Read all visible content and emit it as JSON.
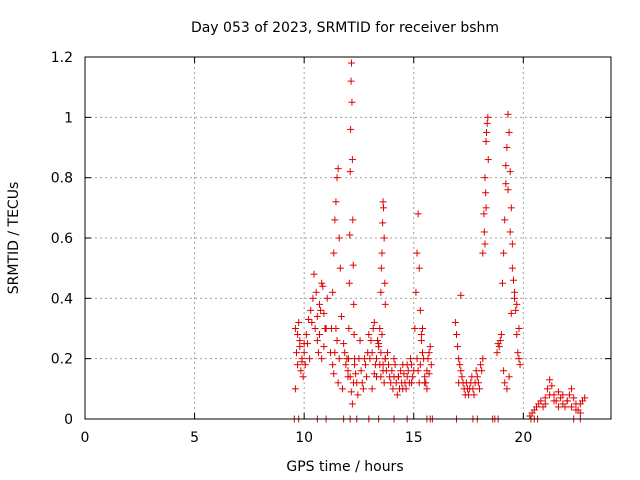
{
  "chart_data": {
    "type": "scatter",
    "title": "Day 053 of 2023, SRMTID for receiver bshm",
    "xlabel": "GPS time / hours",
    "ylabel": "SRMTID / TECUs",
    "xlim": [
      0,
      24
    ],
    "ylim": [
      0,
      1.2
    ],
    "xticks": [
      0,
      5,
      10,
      15,
      20
    ],
    "xtick_labels": [
      "0",
      "5",
      "10",
      "15",
      "20"
    ],
    "yticks": [
      0,
      0.2,
      0.4,
      0.6,
      0.8,
      1.0,
      1.2
    ],
    "ytick_labels": [
      "0",
      "0.2",
      "0.4",
      "0.6",
      "0.8",
      "1",
      "1.2"
    ],
    "grid": true,
    "marker": "plus",
    "color": "#e00000",
    "series": [
      {
        "name": "SRMTID",
        "x": [
          9.6,
          9.65,
          9.7,
          9.75,
          9.8,
          9.85,
          9.9,
          9.95,
          10.0,
          10.05,
          9.6,
          9.7,
          9.8,
          9.9,
          10.0,
          10.1,
          10.2,
          10.3,
          10.4,
          10.5,
          10.6,
          10.7,
          10.8,
          10.9,
          11.0,
          10.15,
          10.25,
          10.35,
          10.45,
          10.55,
          10.65,
          10.75,
          10.85,
          10.95,
          11.05,
          10.6,
          10.7,
          10.8,
          10.9,
          11.0,
          11.2,
          11.25,
          11.3,
          11.35,
          11.4,
          11.45,
          11.5,
          11.55,
          11.6,
          11.65,
          11.3,
          11.35,
          11.4,
          11.45,
          11.5,
          11.55,
          11.6,
          11.7,
          11.8,
          11.9,
          12.0,
          11.75,
          11.85,
          11.95,
          12.0,
          12.02,
          12.04,
          12.06,
          12.08,
          12.1,
          12.12,
          12.14,
          12.16,
          12.18,
          12.2,
          12.22,
          12.24,
          12.26,
          12.28,
          12.3,
          12.1,
          12.15,
          12.2,
          12.25,
          12.3,
          12.35,
          12.4,
          12.45,
          12.5,
          12.55,
          12.6,
          12.65,
          12.7,
          12.75,
          12.8,
          12.85,
          12.9,
          12.95,
          13.0,
          13.05,
          13.1,
          13.15,
          13.2,
          13.25,
          13.3,
          13.35,
          13.4,
          13.45,
          13.5,
          13.55,
          13.6,
          13.65,
          13.7,
          13.1,
          13.2,
          13.3,
          13.4,
          13.5,
          13.6,
          13.7,
          13.75,
          13.45,
          13.5,
          13.55,
          13.6,
          13.65,
          13.7,
          13.52,
          13.58,
          13.62,
          13.68,
          13.8,
          13.85,
          13.9,
          13.95,
          14.0,
          14.05,
          14.1,
          14.15,
          14.2,
          14.25,
          14.3,
          14.35,
          14.4,
          14.45,
          14.5,
          14.55,
          14.6,
          14.65,
          14.7,
          14.75,
          14.8,
          14.85,
          14.9,
          14.95,
          15.0,
          14.1,
          14.3,
          14.5,
          14.7,
          14.9,
          15.05,
          15.1,
          15.15,
          15.2,
          15.25,
          15.3,
          15.35,
          15.4,
          15.15,
          15.2,
          15.25,
          15.3,
          15.35,
          15.4,
          15.45,
          15.5,
          15.55,
          15.6,
          15.65,
          15.7,
          15.75,
          15.8,
          15.5,
          15.6,
          15.7,
          16.9,
          16.95,
          17.0,
          17.05,
          17.1,
          17.15,
          17.2,
          17.25,
          17.3,
          17.35,
          17.4,
          17.45,
          17.5,
          17.55,
          17.6,
          17.65,
          17.7,
          17.75,
          17.8,
          17.85,
          17.9,
          17.95,
          18.0,
          18.05,
          18.1,
          18.15,
          17.15,
          17.05,
          18.15,
          18.2,
          18.25,
          18.3,
          18.35,
          18.4,
          18.22,
          18.28,
          18.32,
          18.38,
          18.25,
          18.3,
          18.8,
          18.85,
          18.9,
          18.95,
          19.0,
          19.05,
          19.1,
          19.15,
          19.2,
          19.25,
          19.3,
          19.35,
          19.4,
          19.45,
          19.5,
          19.55,
          19.6,
          19.65,
          19.7,
          19.75,
          19.8,
          19.85,
          19.2,
          19.3,
          19.4,
          19.5,
          19.6,
          19.7,
          19.8,
          19.1,
          19.15,
          19.25,
          19.35,
          19.45,
          20.3,
          20.4,
          20.5,
          20.6,
          20.7,
          20.8,
          20.9,
          21.0,
          21.1,
          21.2,
          21.3,
          21.4,
          21.5,
          21.6,
          21.7,
          21.8,
          21.9,
          22.0,
          22.1,
          22.2,
          22.3,
          22.4,
          22.5,
          22.6,
          22.7,
          22.8,
          21.0,
          21.2,
          21.4,
          21.6,
          21.8,
          22.0,
          22.2,
          22.4,
          22.6,
          9.55,
          9.75,
          10.6,
          11.0,
          11.8,
          12.1,
          12.4,
          12.95,
          13.4,
          14.1,
          14.7,
          15.6,
          15.75,
          15.85,
          16.95,
          17.7,
          17.9,
          18.6,
          18.7,
          18.85,
          20.35,
          20.5,
          20.65,
          22.3,
          22.6
        ],
        "y": [
          0.3,
          0.22,
          0.18,
          0.32,
          0.26,
          0.16,
          0.2,
          0.14,
          0.25,
          0.18,
          0.1,
          0.28,
          0.24,
          0.19,
          0.22,
          0.28,
          0.33,
          0.36,
          0.4,
          0.3,
          0.26,
          0.38,
          0.45,
          0.35,
          0.3,
          0.25,
          0.2,
          0.32,
          0.48,
          0.42,
          0.22,
          0.36,
          0.44,
          0.3,
          0.4,
          0.34,
          0.28,
          0.2,
          0.24,
          0.3,
          0.22,
          0.3,
          0.42,
          0.55,
          0.66,
          0.72,
          0.8,
          0.83,
          0.6,
          0.5,
          0.18,
          0.15,
          0.22,
          0.3,
          0.26,
          0.12,
          0.2,
          0.34,
          0.25,
          0.18,
          0.14,
          0.1,
          0.22,
          0.2,
          0.16,
          0.2,
          0.3,
          0.45,
          0.61,
          0.82,
          0.96,
          1.12,
          1.18,
          1.05,
          0.86,
          0.66,
          0.51,
          0.38,
          0.28,
          0.2,
          0.14,
          0.09,
          0.05,
          0.12,
          0.18,
          0.15,
          0.12,
          0.08,
          0.2,
          0.26,
          0.16,
          0.12,
          0.1,
          0.2,
          0.18,
          0.14,
          0.22,
          0.28,
          0.2,
          0.26,
          0.22,
          0.3,
          0.32,
          0.18,
          0.14,
          0.26,
          0.24,
          0.18,
          0.22,
          0.28,
          0.16,
          0.12,
          0.2,
          0.1,
          0.15,
          0.2,
          0.25,
          0.14,
          0.18,
          0.2,
          0.16,
          0.3,
          0.42,
          0.55,
          0.72,
          0.6,
          0.38,
          0.5,
          0.65,
          0.7,
          0.45,
          0.22,
          0.18,
          0.14,
          0.12,
          0.16,
          0.1,
          0.14,
          0.18,
          0.12,
          0.08,
          0.14,
          0.1,
          0.16,
          0.12,
          0.18,
          0.15,
          0.12,
          0.1,
          0.14,
          0.16,
          0.12,
          0.2,
          0.18,
          0.14,
          0.16,
          0.2,
          0.14,
          0.1,
          0.18,
          0.12,
          0.3,
          0.42,
          0.55,
          0.68,
          0.5,
          0.36,
          0.28,
          0.22,
          0.2,
          0.16,
          0.12,
          0.18,
          0.26,
          0.3,
          0.2,
          0.14,
          0.12,
          0.1,
          0.2,
          0.15,
          0.24,
          0.18,
          0.12,
          0.16,
          0.22,
          0.32,
          0.28,
          0.24,
          0.2,
          0.18,
          0.16,
          0.14,
          0.12,
          0.1,
          0.08,
          0.12,
          0.1,
          0.08,
          0.1,
          0.12,
          0.14,
          0.1,
          0.08,
          0.12,
          0.16,
          0.14,
          0.12,
          0.1,
          0.18,
          0.16,
          0.2,
          0.41,
          0.12,
          0.55,
          0.68,
          0.8,
          0.92,
          0.98,
          0.86,
          0.62,
          0.75,
          0.95,
          1.0,
          0.58,
          0.7,
          0.22,
          0.25,
          0.24,
          0.26,
          0.28,
          0.45,
          0.55,
          0.66,
          0.78,
          0.9,
          1.01,
          0.95,
          0.82,
          0.7,
          0.58,
          0.46,
          0.4,
          0.36,
          0.28,
          0.22,
          0.2,
          0.18,
          0.84,
          0.76,
          0.62,
          0.5,
          0.42,
          0.38,
          0.3,
          0.16,
          0.12,
          0.1,
          0.14,
          0.35,
          0.01,
          0.02,
          0.03,
          0.04,
          0.05,
          0.06,
          0.04,
          0.07,
          0.1,
          0.13,
          0.11,
          0.08,
          0.06,
          0.09,
          0.07,
          0.05,
          0.04,
          0.06,
          0.08,
          0.1,
          0.07,
          0.05,
          0.03,
          0.05,
          0.06,
          0.07,
          0.05,
          0.08,
          0.06,
          0.04,
          0.08,
          0.06,
          0.04,
          0.03,
          0.02,
          0.0,
          0.0,
          0.0,
          0.0,
          0.0,
          0.0,
          0.0,
          0.0,
          0.0,
          0.0,
          0.0,
          0.0,
          0.0,
          0.0,
          0.0,
          0.0,
          0.0,
          0.0,
          0.0,
          0.0,
          0.0,
          0.0,
          0.0,
          0.0,
          0.0
        ]
      }
    ]
  }
}
